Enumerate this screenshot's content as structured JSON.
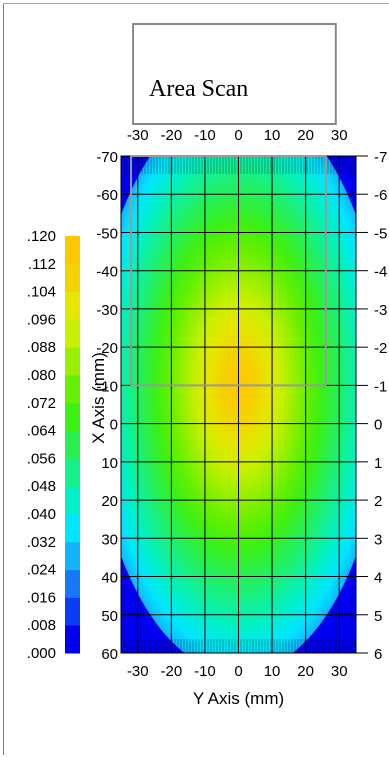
{
  "chart_data": {
    "type": "heatmap",
    "title": "Area Scan",
    "xlabel": "Y Axis (mm)",
    "ylabel": "X Axis (mm)",
    "x_ticks": [
      "-30",
      "-20",
      "-10",
      "0",
      "10",
      "20",
      "30"
    ],
    "y_ticks_left": [
      "-70",
      "-60",
      "-50",
      "-40",
      "-30",
      "-20",
      "-10",
      "0",
      "10",
      "20",
      "30",
      "40",
      "50",
      "60"
    ],
    "y_ticks_right": [
      "-7",
      "-6",
      "-5",
      "-4",
      "-3",
      "-2",
      "-1",
      "0",
      "1",
      "2",
      "3",
      "4",
      "5",
      "6"
    ],
    "xlim": [
      -35,
      35
    ],
    "ylim": [
      -70,
      60
    ],
    "y_inverted": true,
    "grid": true,
    "colorbar": {
      "ticks": [
        ".120",
        ".112",
        ".104",
        ".096",
        ".088",
        ".080",
        ".072",
        ".064",
        ".056",
        ".048",
        ".040",
        ".032",
        ".024",
        ".016",
        ".008",
        ".000"
      ],
      "min": 0.0,
      "max": 0.12,
      "colors": [
        "#0000f0",
        "#0a3cf4",
        "#1478f8",
        "#14b4fc",
        "#00e6ff",
        "#00f0c8",
        "#14f08c",
        "#28f050",
        "#3cf014",
        "#64f000",
        "#96f000",
        "#c8f000",
        "#e6e600",
        "#f5d200",
        "#ffc800"
      ]
    },
    "field": {
      "peak_value": 0.118,
      "peak_y_mm": 0,
      "peak_x_mm": -10,
      "value_at_edges": 0.03
    },
    "annotation": {
      "label": "Area Scan",
      "y_range_mm": [
        -32,
        26
      ],
      "x_range_mm": [
        -70,
        -10
      ]
    }
  }
}
